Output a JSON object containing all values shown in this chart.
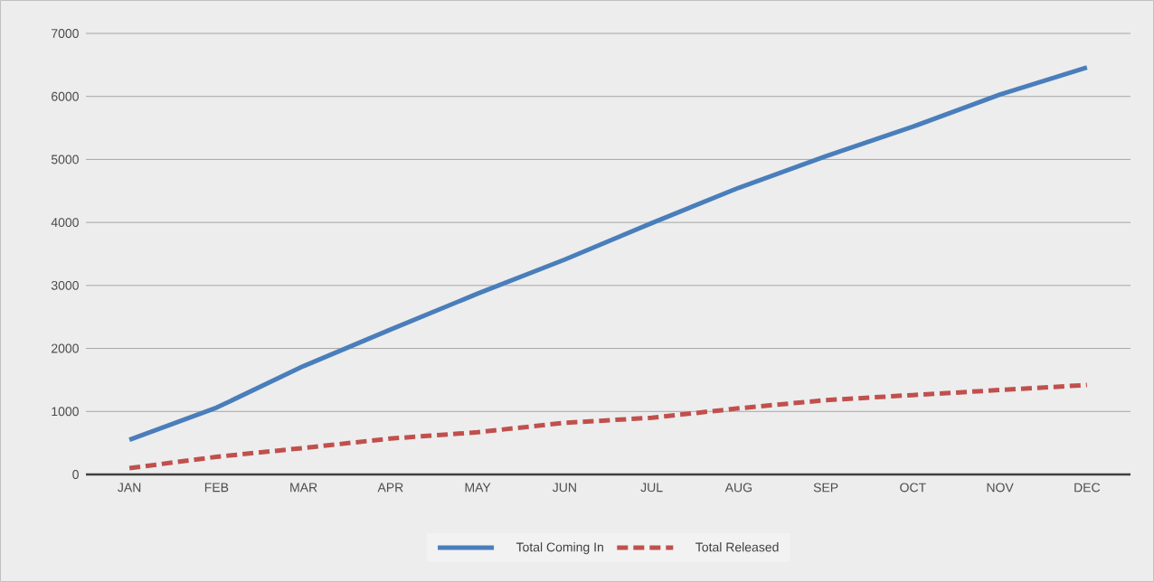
{
  "chart_data": {
    "type": "line",
    "categories": [
      "JAN",
      "FEB",
      "MAR",
      "APR",
      "MAY",
      "JUN",
      "JUL",
      "AUG",
      "SEP",
      "OCT",
      "NOV",
      "DEC"
    ],
    "series": [
      {
        "name": "Total Coming In",
        "color": "#4a7ebb",
        "line_style": "solid",
        "values": [
          550,
          1060,
          1720,
          2300,
          2870,
          3410,
          3990,
          4550,
          5050,
          5520,
          6030,
          6460
        ]
      },
      {
        "name": "Total Released",
        "color": "#c0504d",
        "line_style": "dashed",
        "values": [
          100,
          280,
          420,
          570,
          670,
          820,
          900,
          1050,
          1180,
          1260,
          1340,
          1420
        ]
      }
    ],
    "ylim": [
      0,
      7000
    ],
    "yticks": [
      0,
      1000,
      2000,
      3000,
      4000,
      5000,
      6000,
      7000
    ],
    "grid": "y",
    "legend": "bottom"
  }
}
